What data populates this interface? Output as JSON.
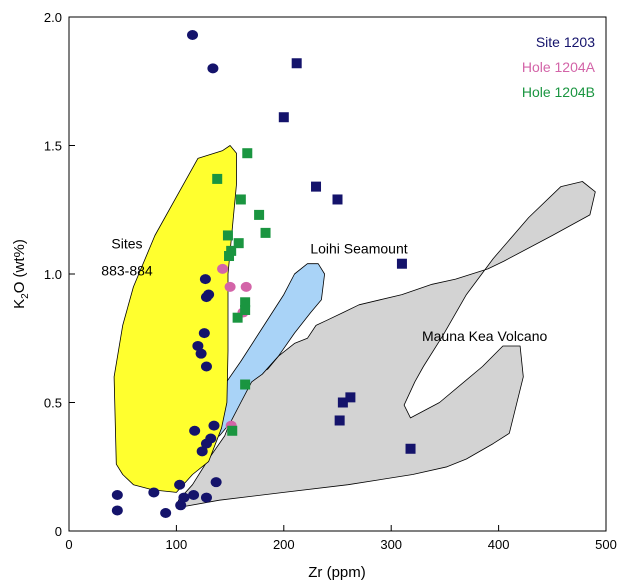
{
  "chart_data": {
    "type": "scatter",
    "xlabel": "Zr (ppm)",
    "ylabel_main": "K",
    "ylabel_sub": "2",
    "ylabel_tail": "O (wt%)",
    "xlim": [
      0,
      500
    ],
    "ylim": [
      0,
      2.0
    ],
    "xticks": [
      0,
      100,
      200,
      300,
      400,
      500
    ],
    "yticks": [
      0,
      0.5,
      1.0,
      1.5,
      2.0
    ],
    "xtick_labels": [
      "0",
      "100",
      "200",
      "300",
      "400",
      "500"
    ],
    "ytick_labels": [
      "0",
      "0.5",
      "1.0",
      "1.5",
      "2.0"
    ],
    "grid": false,
    "legend_position": "top-right",
    "regions": [
      {
        "id": "mauna-kea",
        "label": "Mauna Kea Volcano",
        "color": "#d3d3d3",
        "points": [
          [
            100,
            0.09
          ],
          [
            140,
            0.12
          ],
          [
            200,
            0.15
          ],
          [
            260,
            0.18
          ],
          [
            320,
            0.22
          ],
          [
            352,
            0.25
          ],
          [
            370,
            0.28
          ],
          [
            395,
            0.34
          ],
          [
            410,
            0.38
          ],
          [
            423,
            0.6
          ],
          [
            420,
            0.72
          ],
          [
            404,
            0.72
          ],
          [
            385,
            0.64
          ],
          [
            345,
            0.5
          ],
          [
            318,
            0.44
          ],
          [
            312,
            0.49
          ],
          [
            322,
            0.58
          ],
          [
            330,
            0.64
          ],
          [
            348,
            0.76
          ],
          [
            370,
            0.92
          ],
          [
            395,
            1.06
          ],
          [
            428,
            1.22
          ],
          [
            458,
            1.34
          ],
          [
            478,
            1.36
          ],
          [
            490,
            1.32
          ],
          [
            485,
            1.23
          ],
          [
            450,
            1.15
          ],
          [
            405,
            1.05
          ],
          [
            390,
            1.02
          ],
          [
            360,
            0.98
          ],
          [
            338,
            0.96
          ],
          [
            310,
            0.92
          ],
          [
            290,
            0.9
          ],
          [
            270,
            0.88
          ],
          [
            255,
            0.85
          ],
          [
            240,
            0.82
          ],
          [
            230,
            0.8
          ],
          [
            222,
            0.75
          ],
          [
            210,
            0.73
          ],
          [
            195,
            0.68
          ],
          [
            185,
            0.63
          ],
          [
            170,
            0.6
          ],
          [
            155,
            0.48
          ],
          [
            145,
            0.37
          ],
          [
            130,
            0.28
          ],
          [
            115,
            0.18
          ],
          [
            102,
            0.12
          ]
        ]
      },
      {
        "id": "loihi",
        "label": "Loihi Seamount",
        "color": "#a9d3f7",
        "points": [
          [
            125,
            0.37
          ],
          [
            127,
            0.44
          ],
          [
            140,
            0.54
          ],
          [
            160,
            0.66
          ],
          [
            180,
            0.79
          ],
          [
            200,
            0.92
          ],
          [
            210,
            1.0
          ],
          [
            222,
            1.04
          ],
          [
            232,
            1.04
          ],
          [
            238,
            1.0
          ],
          [
            235,
            0.9
          ],
          [
            225,
            0.85
          ],
          [
            210,
            0.77
          ],
          [
            195,
            0.68
          ],
          [
            180,
            0.61
          ],
          [
            170,
            0.58
          ],
          [
            160,
            0.5
          ],
          [
            150,
            0.42
          ],
          [
            140,
            0.37
          ],
          [
            130,
            0.36
          ]
        ]
      },
      {
        "id": "sites-883-884",
        "label_lines": [
          "Sites",
          "883-884"
        ],
        "color": "#ffff2e",
        "points": [
          [
            44,
            0.26
          ],
          [
            42,
            0.6
          ],
          [
            50,
            0.8
          ],
          [
            60,
            0.95
          ],
          [
            80,
            1.15
          ],
          [
            100,
            1.3
          ],
          [
            120,
            1.45
          ],
          [
            143,
            1.48
          ],
          [
            150,
            1.5
          ],
          [
            156,
            1.47
          ],
          [
            156,
            1.35
          ],
          [
            148,
            1.0
          ],
          [
            148,
            0.7
          ],
          [
            147,
            0.5
          ],
          [
            142,
            0.4
          ],
          [
            130,
            0.27
          ],
          [
            115,
            0.22
          ],
          [
            100,
            0.15
          ],
          [
            78,
            0.16
          ],
          [
            60,
            0.18
          ],
          [
            50,
            0.22
          ]
        ]
      }
    ],
    "region_labels": [
      {
        "text": "Loihi Seamount",
        "x": 270,
        "y": 1.08
      },
      {
        "text": "Mauna Kea Volcano",
        "x": 387,
        "y": 0.74
      }
    ],
    "region_label_multi": {
      "lines": [
        "Sites",
        "883-884"
      ],
      "x": 54,
      "y": 1.1,
      "y2": 0.995
    },
    "series": [
      {
        "name": "Site 1203",
        "color": "#14136b",
        "marker": "mixed",
        "circles": [
          [
            115,
            1.93
          ],
          [
            134,
            1.8
          ],
          [
            127,
            0.98
          ],
          [
            130,
            0.92
          ],
          [
            128,
            0.91
          ],
          [
            126,
            0.77
          ],
          [
            120,
            0.72
          ],
          [
            123,
            0.69
          ],
          [
            128,
            0.64
          ],
          [
            117,
            0.39
          ],
          [
            135,
            0.41
          ],
          [
            132,
            0.36
          ],
          [
            128,
            0.34
          ],
          [
            124,
            0.31
          ],
          [
            103,
            0.18
          ],
          [
            116,
            0.14
          ],
          [
            137,
            0.19
          ],
          [
            128,
            0.13
          ],
          [
            104,
            0.1
          ],
          [
            45,
            0.14
          ],
          [
            45,
            0.08
          ],
          [
            79,
            0.15
          ],
          [
            90,
            0.07
          ],
          [
            107,
            0.13
          ]
        ],
        "squares": [
          [
            212,
            1.82
          ],
          [
            200,
            1.61
          ],
          [
            230,
            1.34
          ],
          [
            250,
            1.29
          ],
          [
            310,
            1.04
          ],
          [
            255,
            0.5
          ],
          [
            262,
            0.52
          ],
          [
            252,
            0.43
          ],
          [
            318,
            0.32
          ]
        ]
      },
      {
        "name": "Hole 1204A",
        "color": "#d364a8",
        "marker": "circle",
        "points": [
          [
            143,
            1.02
          ],
          [
            150,
            0.95
          ],
          [
            165,
            0.95
          ],
          [
            162,
            0.85
          ],
          [
            151,
            0.41
          ]
        ]
      },
      {
        "name": "Hole 1204B",
        "color": "#1a9540",
        "marker": "square",
        "points": [
          [
            166,
            1.47
          ],
          [
            138,
            1.37
          ],
          [
            160,
            1.29
          ],
          [
            177,
            1.23
          ],
          [
            183,
            1.16
          ],
          [
            148,
            1.15
          ],
          [
            151,
            1.09
          ],
          [
            158,
            1.12
          ],
          [
            149,
            1.07
          ],
          [
            164,
            0.89
          ],
          [
            164,
            0.86
          ],
          [
            157,
            0.83
          ],
          [
            164,
            0.57
          ],
          [
            152,
            0.39
          ]
        ]
      }
    ]
  }
}
